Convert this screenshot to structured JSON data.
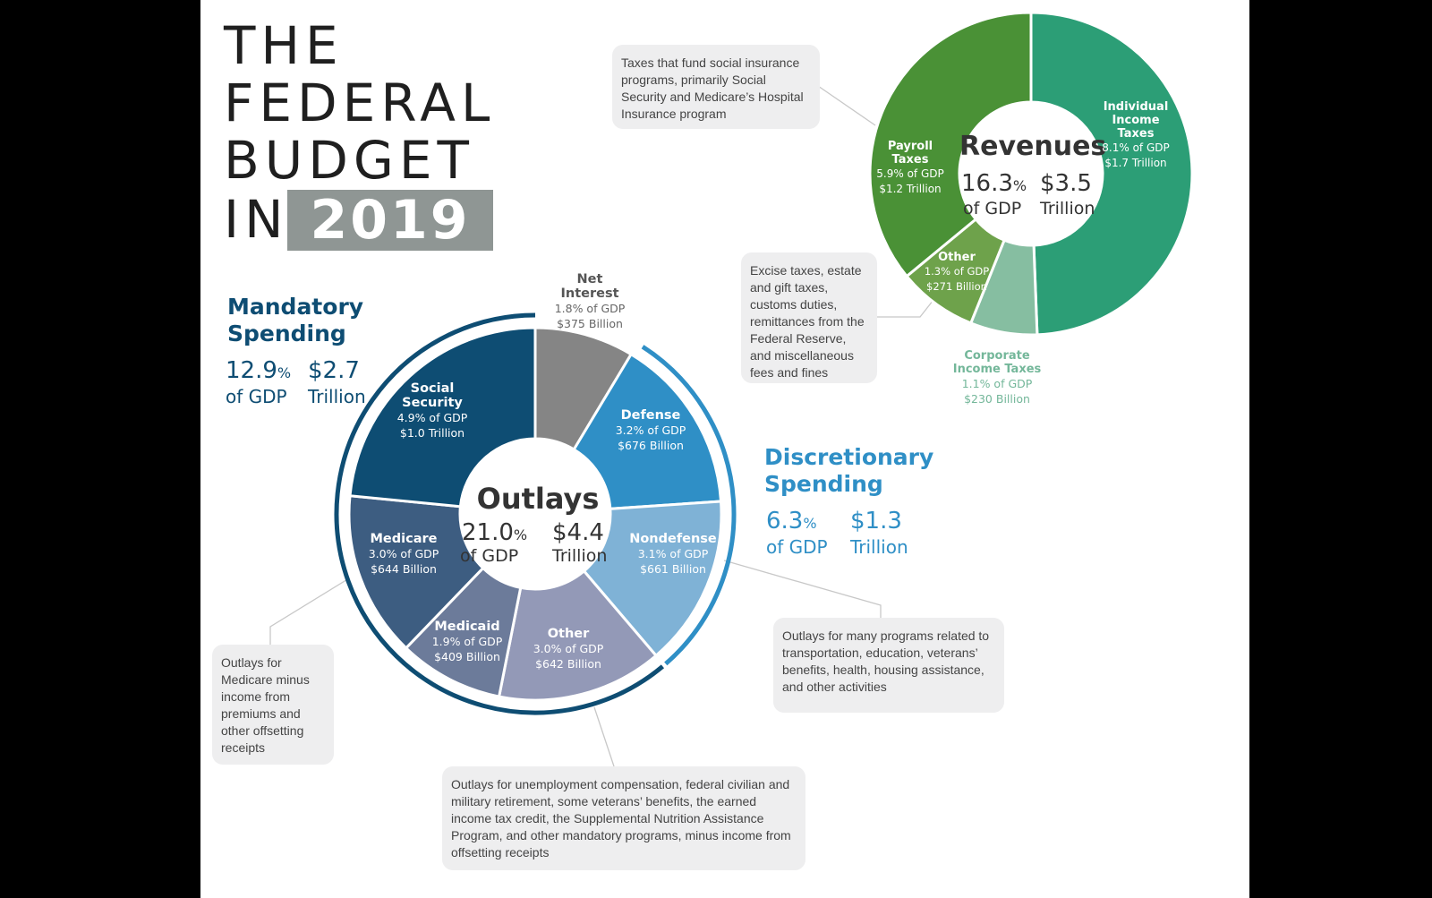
{
  "title": {
    "line1": "THE",
    "line2": "FEDERAL",
    "line3": "BUDGET",
    "line4": "IN",
    "year": "2019"
  },
  "mandatory": {
    "title1": "Mandatory",
    "title2": "Spending",
    "pct": "12.9",
    "pct_unit": "%",
    "dollar": "$2.7",
    "of_gdp": "of GDP",
    "unit": "Trillion",
    "color": "#0e4d73"
  },
  "discretionary": {
    "title1": "Discretionary",
    "title2": "Spending",
    "pct": "6.3",
    "pct_unit": "%",
    "dollar": "$1.3",
    "of_gdp": "of GDP",
    "unit": "Trillion",
    "color": "#2f8fc6"
  },
  "outlays_center": {
    "title": "Outlays",
    "pct": "21.0",
    "pct_unit": "%",
    "dollar": "$4.4",
    "of_gdp": "of GDP",
    "unit": "Trillion"
  },
  "revenues_center": {
    "title": "Revenues",
    "pct": "16.3",
    "pct_unit": "%",
    "dollar": "$3.5",
    "of_gdp": "of GDP",
    "unit": "Trillion"
  },
  "notes": {
    "payroll": "Taxes that fund social insurance programs, primarily Social Security and Medicare’s Hospital Insurance program",
    "other_revenue": "Excise taxes, estate and gift taxes, customs duties, remittances from the Federal Reserve, and miscellaneous fees and fines",
    "nondefense": "Outlays for many programs related to transportation, education, veterans’ benefits, health, housing assistance, and other activities",
    "medicare": "Outlays for Medicare minus income from premiums and other offsetting receipts",
    "other_outlays": "Outlays for unemployment compensation, federal civilian and military retirement, some veterans’ benefits, the earned income tax credit, the Supplemental Nutrition Assistance Program, and other mandatory programs, minus income from offsetting receipts"
  },
  "chart_data": [
    {
      "type": "pie",
      "title": "Outlays",
      "unit": "% of GDP",
      "categories": [
        "Net Interest",
        "Defense",
        "Nondefense",
        "Other",
        "Medicaid",
        "Medicare",
        "Social Security"
      ],
      "values": [
        1.8,
        3.2,
        3.1,
        3.0,
        1.9,
        3.0,
        4.9
      ],
      "labels": [
        {
          "name1": "Net",
          "name2": "Interest",
          "gdp": "1.8% of GDP",
          "amount": "$375 Billion"
        },
        {
          "name1": "Defense",
          "name2": "",
          "gdp": "3.2% of GDP",
          "amount": "$676 Billion"
        },
        {
          "name1": "Nondefense",
          "name2": "",
          "gdp": "3.1% of GDP",
          "amount": "$661 Billion"
        },
        {
          "name1": "Other",
          "name2": "",
          "gdp": "3.0% of GDP",
          "amount": "$642 Billion"
        },
        {
          "name1": "Medicaid",
          "name2": "",
          "gdp": "1.9% of GDP",
          "amount": "$409 Billion"
        },
        {
          "name1": "Medicare",
          "name2": "",
          "gdp": "3.0% of GDP",
          "amount": "$644 Billion"
        },
        {
          "name1": "Social",
          "name2": "Security",
          "gdp": "4.9% of GDP",
          "amount": "$1.0 Trillion"
        }
      ],
      "colors": [
        "#858585",
        "#2f8fc6",
        "#7fb2d6",
        "#9399b7",
        "#6c7b9a",
        "#3d5d81",
        "#0e4d73"
      ]
    },
    {
      "type": "pie",
      "title": "Revenues",
      "unit": "% of GDP",
      "categories": [
        "Individual Income Taxes",
        "Corporate Income Taxes",
        "Other",
        "Payroll Taxes"
      ],
      "values": [
        8.1,
        1.1,
        1.3,
        5.9
      ],
      "labels": [
        {
          "name1": "Individual",
          "name2": "Income",
          "name3": "Taxes",
          "gdp": "8.1% of GDP",
          "amount": "$1.7 Trillion"
        },
        {
          "name1": "Corporate",
          "name2": "Income Taxes",
          "name3": "",
          "gdp": "1.1% of GDP",
          "amount": "$230 Billion"
        },
        {
          "name1": "Other",
          "name2": "",
          "name3": "",
          "gdp": "1.3% of GDP",
          "amount": "$271 Billion"
        },
        {
          "name1": "Payroll",
          "name2": "Taxes",
          "name3": "",
          "gdp": "5.9% of GDP",
          "amount": "$1.2 Trillion"
        }
      ],
      "colors": [
        "#2c9e76",
        "#86bea1",
        "#6ea24b",
        "#4a9136"
      ]
    }
  ]
}
